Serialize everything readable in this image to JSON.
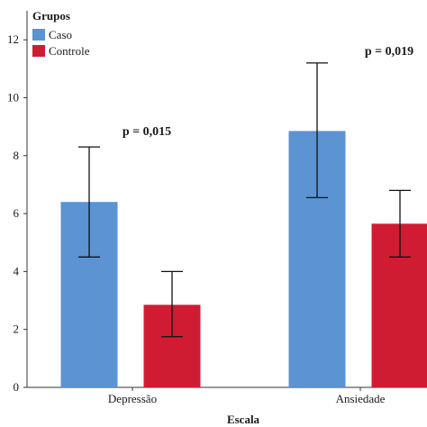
{
  "chart_data": {
    "type": "bar",
    "title": "",
    "xlabel": "Escala",
    "ylabel": "",
    "categories": [
      "Depressão",
      "Ansiedade"
    ],
    "ylim": [
      0,
      13
    ],
    "yticks": [
      0,
      2,
      4,
      6,
      8,
      10,
      12
    ],
    "grid": false,
    "legend": {
      "title": "Grupos",
      "placement": "top-left"
    },
    "series": [
      {
        "name": "Caso",
        "color": "#5b93d3",
        "values": [
          6.4,
          8.85
        ],
        "error_low": [
          4.5,
          6.55
        ],
        "error_high": [
          8.3,
          11.2
        ]
      },
      {
        "name": "Controle",
        "color": "#d01c33",
        "values": [
          2.85,
          5.65
        ],
        "error_low": [
          1.75,
          4.5
        ],
        "error_high": [
          4.0,
          6.8
        ]
      }
    ],
    "annotations": [
      {
        "category": "Depressão",
        "text": "p = 0,015"
      },
      {
        "category": "Ansiedade",
        "text": "p = 0,019"
      }
    ]
  }
}
